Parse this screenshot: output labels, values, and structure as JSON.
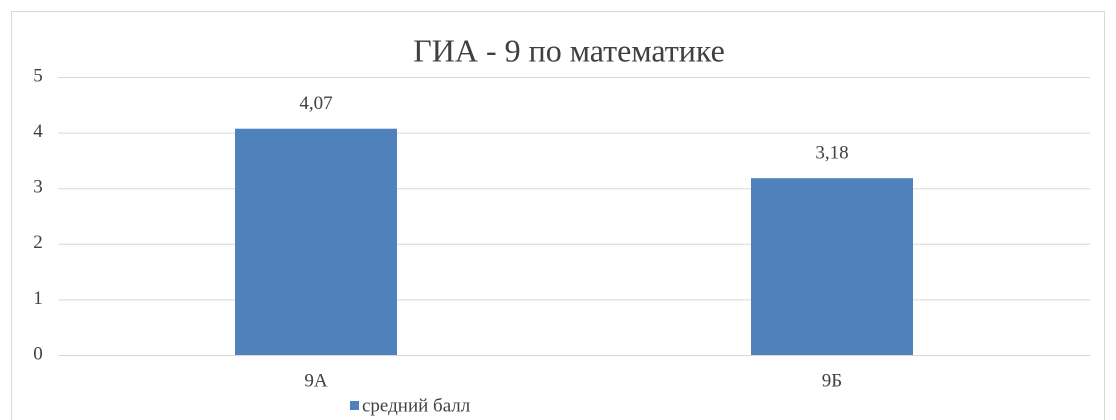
{
  "chart_data": {
    "type": "bar",
    "title": "ГИА - 9 по математике",
    "categories": [
      "9А",
      "9Б"
    ],
    "series": [
      {
        "name": "средний балл",
        "color": "#4f81bd",
        "values": [
          4.07,
          3.18
        ],
        "value_labels": [
          "4,07",
          "3,18"
        ]
      }
    ],
    "ylim": [
      0,
      5
    ],
    "yticks": [
      0,
      1,
      2,
      3,
      4,
      5
    ],
    "grid": true,
    "legend": "bottom"
  }
}
